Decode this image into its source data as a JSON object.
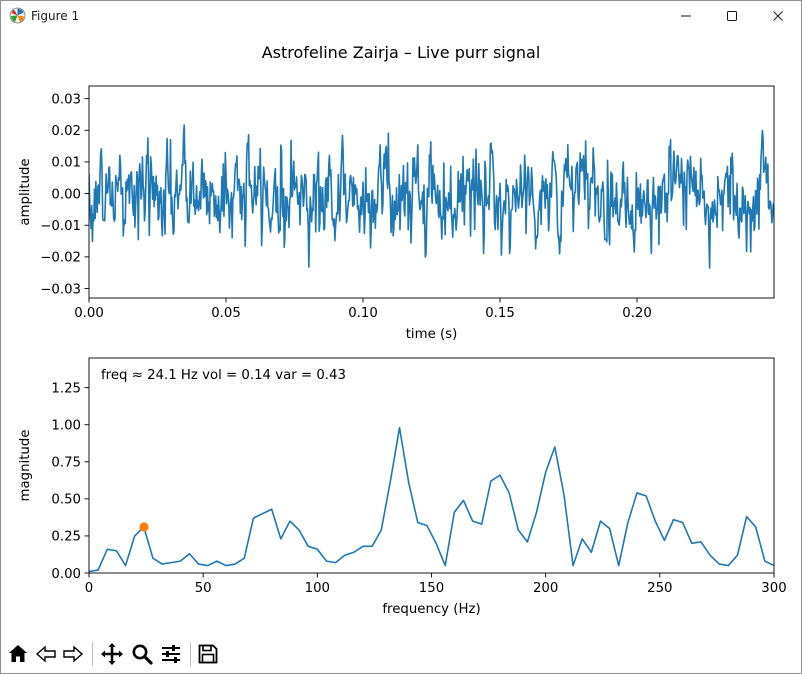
{
  "window": {
    "title": "Figure 1",
    "icon": "matplotlib-logo-icon",
    "controls": [
      "minimize-icon",
      "maximize-icon",
      "close-icon"
    ]
  },
  "figure": {
    "suptitle": "Astrofeline Zairja – Live purr signal",
    "annotation": "freq ≈  24.1 Hz   vol = 0.14   var = 0.43"
  },
  "toolbar": {
    "buttons": [
      "home-icon",
      "back-icon",
      "forward-icon",
      "pan-icon",
      "zoom-icon",
      "configure-subplots-icon",
      "save-icon"
    ]
  },
  "colors": {
    "line": "#1f77b4",
    "marker": "#ff7f0e",
    "axes": "#000000"
  },
  "chart_data": [
    {
      "type": "line",
      "title": "",
      "xlabel": "time (s)",
      "ylabel": "amplitude",
      "xlim": [
        0,
        0.25
      ],
      "ylim": [
        -0.033,
        0.034
      ],
      "xticks": [
        0.0,
        0.05,
        0.1,
        0.15,
        0.2
      ],
      "xtick_labels": [
        "0.00",
        "0.05",
        "0.10",
        "0.15",
        "0.20"
      ],
      "yticks": [
        -0.03,
        -0.02,
        -0.01,
        0.0,
        0.01,
        0.02,
        0.03
      ],
      "ytick_labels": [
        "−0.03",
        "−0.02",
        "−0.01",
        "0.00",
        "0.01",
        "0.02",
        "0.03"
      ],
      "grid": false,
      "series": [
        {
          "x_start": 0.0,
          "x_step": 0.00025,
          "n": 1000,
          "amplitude_std": 0.0075,
          "min": -0.0235,
          "max": 0.0285,
          "note_values": "dense noise waveform"
        }
      ]
    },
    {
      "type": "line",
      "title": "",
      "xlabel": "frequency (Hz)",
      "ylabel": "magnitude",
      "xlim": [
        0,
        300
      ],
      "ylim": [
        0,
        1.45
      ],
      "xticks": [
        0,
        50,
        100,
        150,
        200,
        250,
        300
      ],
      "xtick_labels": [
        "0",
        "50",
        "100",
        "150",
        "200",
        "250",
        "300"
      ],
      "yticks": [
        0.0,
        0.25,
        0.5,
        0.75,
        1.0,
        1.25
      ],
      "ytick_labels": [
        "0.00",
        "0.25",
        "0.50",
        "0.75",
        "1.00",
        "1.25"
      ],
      "grid": false,
      "series": [
        {
          "x": [
            0,
            4,
            8,
            12,
            16,
            20,
            24,
            28,
            32,
            36,
            40,
            44,
            48,
            52,
            56,
            60,
            64,
            68,
            72,
            76,
            80,
            84,
            88,
            92,
            96,
            100,
            104,
            108,
            112,
            116,
            120,
            124,
            128,
            132,
            136,
            140,
            144,
            148,
            152,
            156,
            160,
            164,
            168,
            172,
            176,
            180,
            184,
            188,
            192,
            196,
            200,
            204,
            208,
            212,
            216,
            220,
            224,
            228,
            232,
            236,
            240,
            244,
            248,
            252,
            256,
            260,
            264,
            268,
            272,
            276,
            280,
            284,
            288,
            292,
            296,
            300
          ],
          "y": [
            0.01,
            0.02,
            0.16,
            0.15,
            0.05,
            0.25,
            0.31,
            0.1,
            0.06,
            0.07,
            0.08,
            0.13,
            0.06,
            0.05,
            0.08,
            0.05,
            0.06,
            0.1,
            0.37,
            0.4,
            0.43,
            0.23,
            0.35,
            0.29,
            0.18,
            0.16,
            0.08,
            0.07,
            0.12,
            0.14,
            0.18,
            0.18,
            0.29,
            0.62,
            0.98,
            0.61,
            0.34,
            0.32,
            0.2,
            0.05,
            0.41,
            0.49,
            0.35,
            0.33,
            0.62,
            0.66,
            0.54,
            0.29,
            0.21,
            0.41,
            0.68,
            0.85,
            0.53,
            0.05,
            0.23,
            0.14,
            0.35,
            0.3,
            0.05,
            0.34,
            0.54,
            0.52,
            0.35,
            0.22,
            0.36,
            0.34,
            0.2,
            0.21,
            0.12,
            0.06,
            0.05,
            0.12,
            0.38,
            0.31,
            0.08,
            0.05
          ]
        }
      ],
      "marker": {
        "x": 24.1,
        "y": 0.31
      }
    }
  ]
}
